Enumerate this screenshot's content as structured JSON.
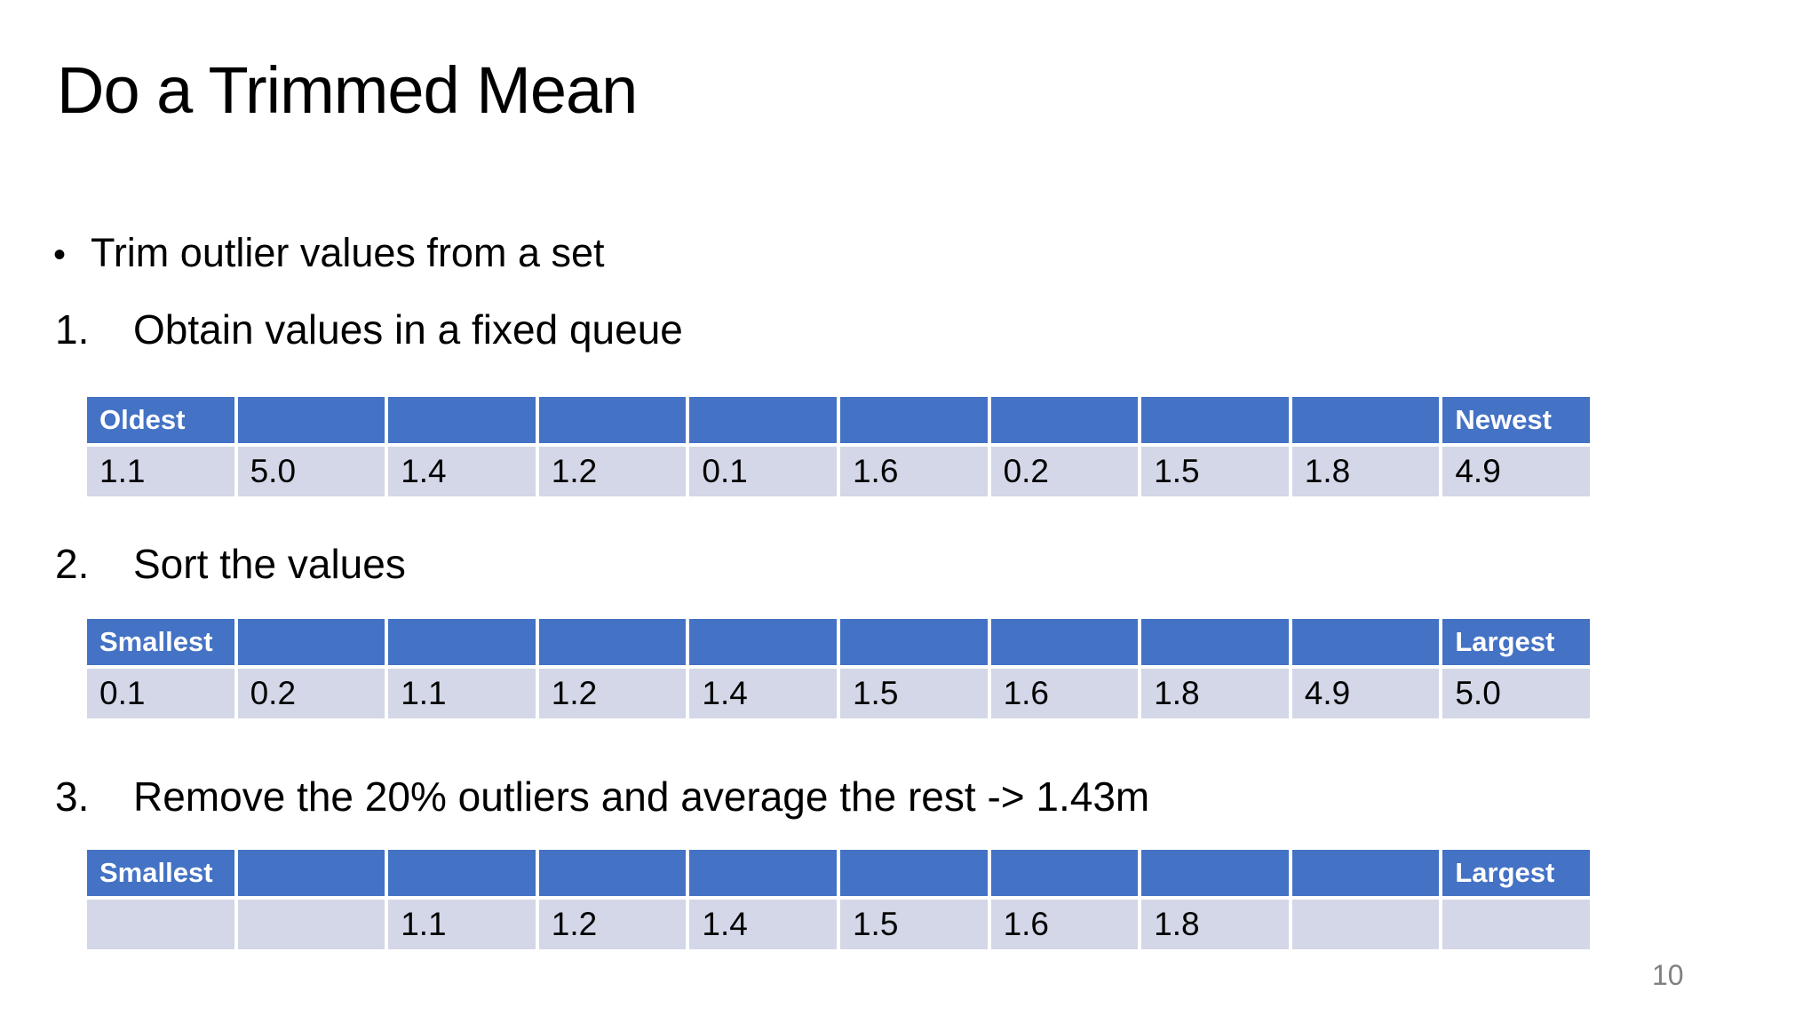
{
  "slide": {
    "title": "Do a Trimmed Mean",
    "bullet_marker": "•",
    "bullet_text": "Trim outlier values from a set",
    "steps": [
      {
        "number": "1.",
        "label": "Obtain values in a fixed queue"
      },
      {
        "number": "2.",
        "label": "Sort the values"
      },
      {
        "number": "3.",
        "label": "Remove the 20% outliers and average the rest -> 1.43m"
      }
    ],
    "page_number": "10"
  },
  "tables": [
    {
      "name": "fixed-queue",
      "headers": [
        "Oldest",
        "",
        "",
        "",
        "",
        "",
        "",
        "",
        "",
        "Newest"
      ],
      "values": [
        "1.1",
        "5.0",
        "1.4",
        "1.2",
        "0.1",
        "1.6",
        "0.2",
        "1.5",
        "1.8",
        "4.9"
      ]
    },
    {
      "name": "sorted-values",
      "headers": [
        "Smallest",
        "",
        "",
        "",
        "",
        "",
        "",
        "",
        "",
        "Largest"
      ],
      "values": [
        "0.1",
        "0.2",
        "1.1",
        "1.2",
        "1.4",
        "1.5",
        "1.6",
        "1.8",
        "4.9",
        "5.0"
      ]
    },
    {
      "name": "trimmed-values",
      "headers": [
        "Smallest",
        "",
        "",
        "",
        "",
        "",
        "",
        "",
        "",
        "Largest"
      ],
      "values": [
        "",
        "",
        "1.1",
        "1.2",
        "1.4",
        "1.5",
        "1.6",
        "1.8",
        "",
        ""
      ]
    }
  ],
  "colors": {
    "table_header_bg": "#4472C4",
    "table_row_bg": "#D3D7E7",
    "table_header_text": "#FFFFFF",
    "body_text": "#000000",
    "page_number_text": "#808080"
  }
}
